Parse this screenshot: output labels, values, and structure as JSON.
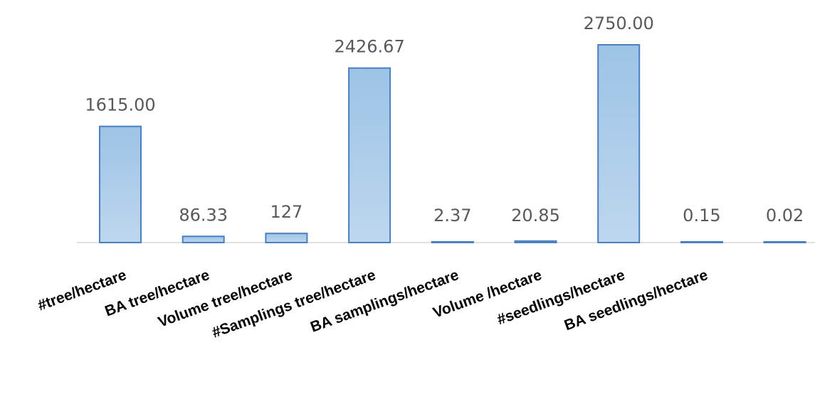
{
  "chart_data": {
    "type": "bar",
    "categories": [
      "#tree/hectare",
      "BA tree/hectare",
      "Volume tree/hectare",
      "#Samplings tree/hectare",
      "BA samplings/hectare",
      "Volume /hectare",
      "#seedlings/hectare",
      "BA seedlings/hectare",
      ""
    ],
    "values": [
      1615.0,
      86.33,
      127,
      2426.67,
      2.37,
      20.85,
      2750.0,
      0.15,
      0.02
    ],
    "value_labels": [
      "1615.00",
      "86.33",
      "127",
      "2426.67",
      "2.37",
      "20.85",
      "2750.00",
      "0.15",
      "0.02"
    ],
    "title": "",
    "xlabel": "",
    "ylabel": "",
    "ylim": [
      0,
      2750
    ],
    "grid": false,
    "legend": "none",
    "colors": {
      "bar_fill_light": "#bdd7ee",
      "bar_fill_dark": "#9dc3e6",
      "bar_stroke": "#4a7fc1",
      "axis": "#d9d9d9",
      "data_label": "#595959",
      "category_label": "#000000"
    }
  }
}
